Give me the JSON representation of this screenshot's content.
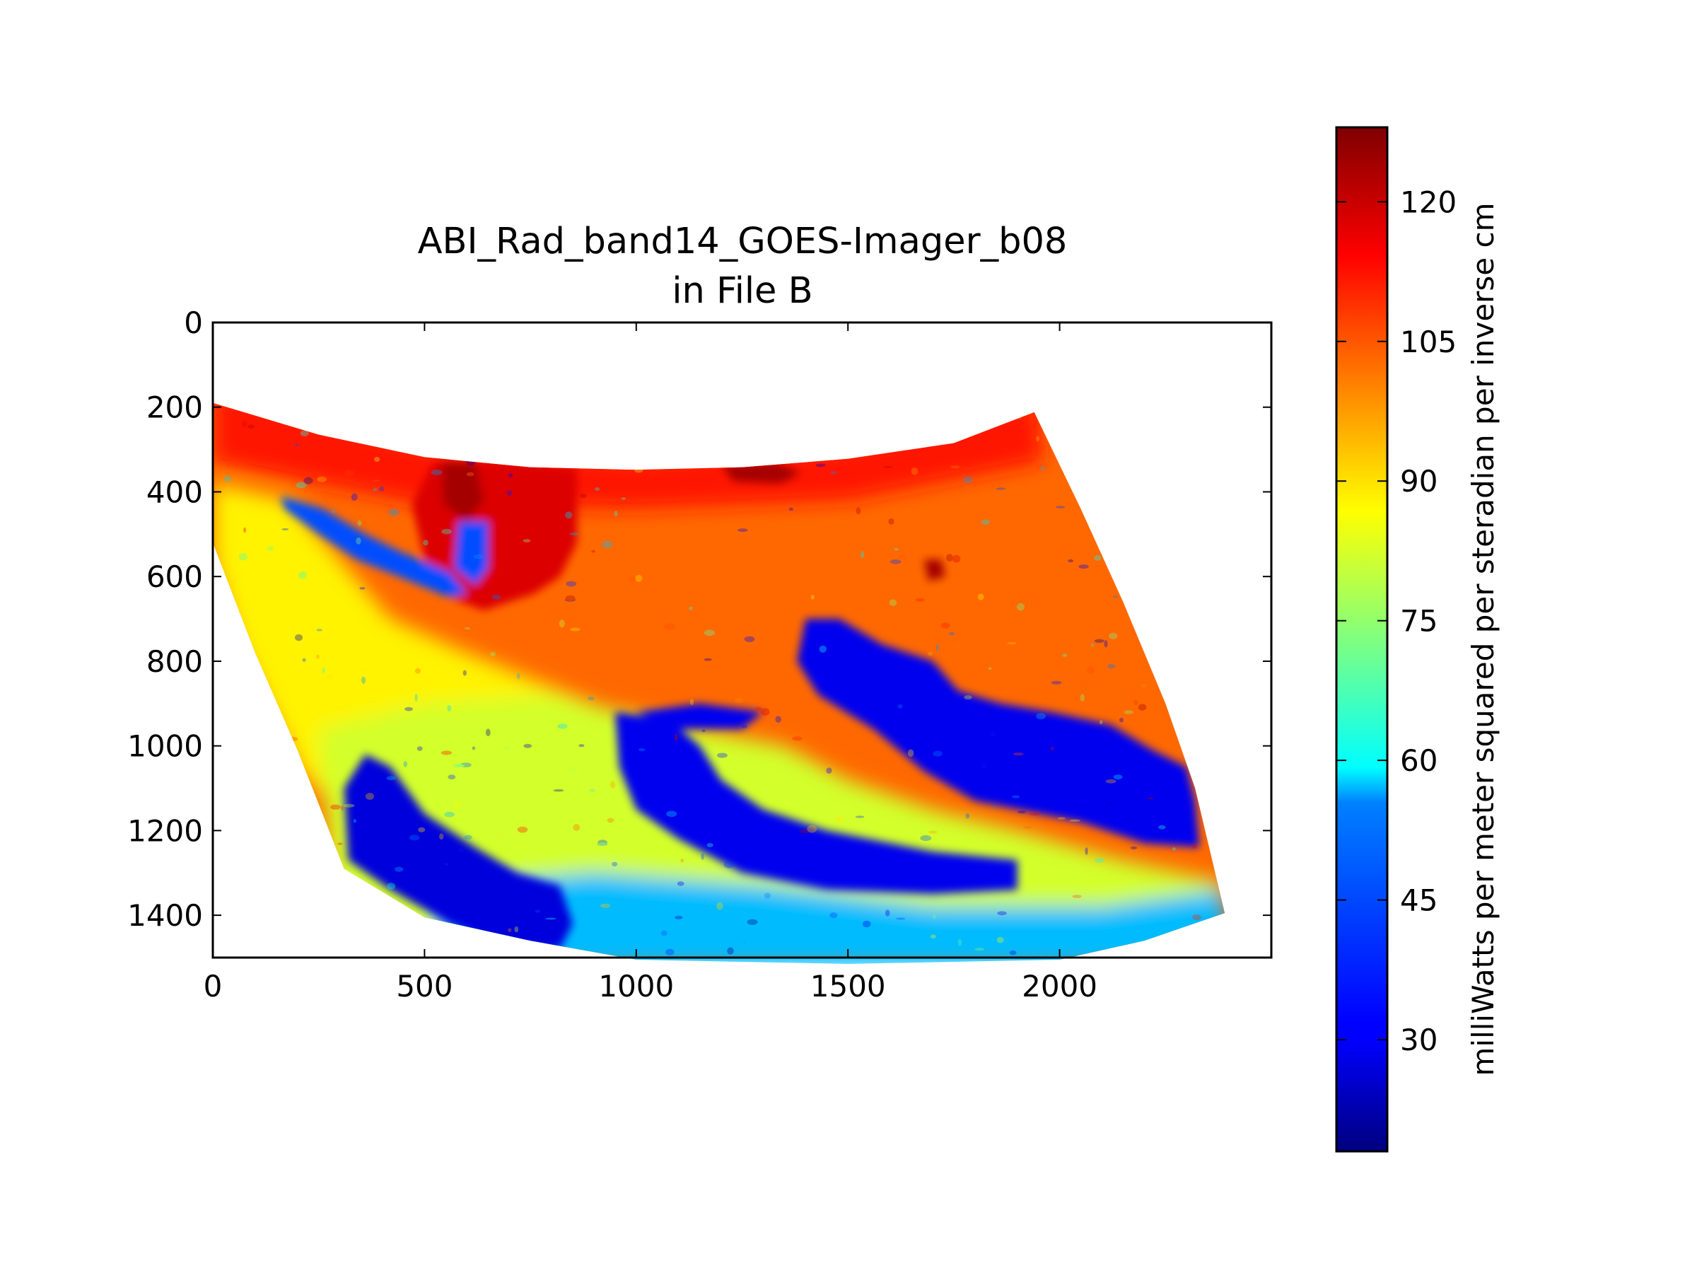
{
  "chart_data": {
    "type": "heatmap",
    "title": "ABI_Rad_band14_GOES-Imager_b08",
    "subtitle": "in File B",
    "xlabel": "",
    "ylabel": "",
    "xlim": [
      0,
      2500
    ],
    "ylim": [
      1500,
      0
    ],
    "x_ticks": [
      0,
      500,
      1000,
      1500,
      2000
    ],
    "y_ticks": [
      0,
      200,
      400,
      600,
      800,
      1000,
      1200,
      1400
    ],
    "colormap": "jet",
    "colorbar": {
      "label": "milliWatts per meter squared per steradian per inverse cm",
      "range": [
        18,
        128
      ],
      "ticks": [
        30,
        45,
        60,
        75,
        90,
        105,
        120
      ]
    },
    "swath_outline": {
      "top_edge": [
        [
          0,
          190
        ],
        [
          250,
          265
        ],
        [
          500,
          318
        ],
        [
          750,
          342
        ],
        [
          1000,
          348
        ],
        [
          1250,
          342
        ],
        [
          1500,
          322
        ],
        [
          1750,
          285
        ],
        [
          1940,
          212
        ]
      ],
      "right_edge": [
        [
          1940,
          212
        ],
        [
          2050,
          440
        ],
        [
          2150,
          660
        ],
        [
          2250,
          900
        ],
        [
          2320,
          1100
        ],
        [
          2390,
          1395
        ]
      ],
      "bottom_edge": [
        [
          2390,
          1395
        ],
        [
          2200,
          1460
        ],
        [
          2000,
          1505
        ],
        [
          1500,
          1515
        ],
        [
          1000,
          1505
        ],
        [
          750,
          1460
        ],
        [
          500,
          1405
        ],
        [
          310,
          1290
        ]
      ],
      "left_edge": [
        [
          310,
          1290
        ],
        [
          200,
          1010
        ],
        [
          100,
          780
        ],
        [
          0,
          520
        ]
      ]
    },
    "regions": [
      {
        "desc": "warm orange background",
        "value": 103
      },
      {
        "desc": "northern red band",
        "value": 112
      },
      {
        "desc": "west-central red plume",
        "value": 118
      },
      {
        "desc": "north dark-red patch",
        "value": 124
      },
      {
        "desc": "western yellow zone",
        "value": 88
      },
      {
        "desc": "south-central yellow-green zone",
        "value": 82
      },
      {
        "desc": "eastern cold cloud system",
        "value": 30
      },
      {
        "desc": "south-western cold cloud band",
        "value": 28
      },
      {
        "desc": "southern cyan edge",
        "value": 52
      },
      {
        "desc": "north-west cold streak",
        "value": 40
      }
    ]
  }
}
